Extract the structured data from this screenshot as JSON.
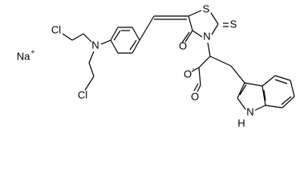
{
  "atoms": [
    {
      "label": "Cl"
    },
    {
      "label": "N"
    },
    {
      "label": "Cl"
    },
    {
      "label": "S"
    },
    {
      "label": "S"
    },
    {
      "label": "O"
    },
    {
      "label": "N"
    },
    {
      "label": "O",
      "charge": "-"
    },
    {
      "label": "O"
    },
    {
      "label": "N",
      "hydrogen": "H"
    }
  ],
  "counterion": {
    "label": "Na",
    "charge": "+"
  }
}
